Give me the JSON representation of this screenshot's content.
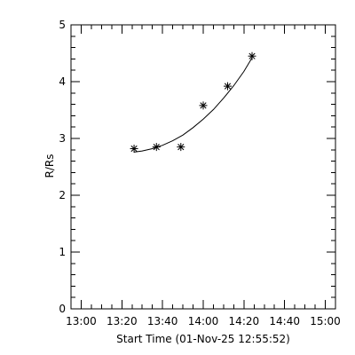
{
  "chart_data": {
    "type": "scatter",
    "xlabel": "Start Time (01-Nov-25 12:55:52)",
    "ylabel": "R/Rs",
    "x_tick_labels": [
      "13:00",
      "13:20",
      "13:40",
      "14:00",
      "14:20",
      "14:40",
      "15:00"
    ],
    "x_tick_values": [
      "13:00",
      "13:20",
      "13:40",
      "14:00",
      "14:20",
      "14:40",
      "15:00"
    ],
    "y_tick_labels": [
      "0",
      "1",
      "2",
      "3",
      "4",
      "5"
    ],
    "y_tick_values": [
      0,
      1,
      2,
      3,
      4,
      5
    ],
    "xlim": [
      "12:55",
      "15:05"
    ],
    "ylim": [
      0,
      5
    ],
    "grid": false,
    "marker": "asterisk",
    "series": [
      {
        "x": [
          "13:26",
          "13:37",
          "13:49",
          "14:00",
          "14:12",
          "14:24"
        ],
        "y": [
          2.82,
          2.85,
          2.85,
          3.58,
          3.92,
          4.45
        ]
      }
    ],
    "fit": {
      "x": [
        "13:26",
        "13:30",
        "13:35",
        "13:40",
        "13:45",
        "13:50",
        "13:55",
        "14:00",
        "14:05",
        "14:10",
        "14:15",
        "14:20",
        "14:24"
      ],
      "y": [
        2.76,
        2.78,
        2.82,
        2.88,
        2.96,
        3.06,
        3.19,
        3.34,
        3.51,
        3.71,
        3.93,
        4.18,
        4.42
      ]
    }
  }
}
